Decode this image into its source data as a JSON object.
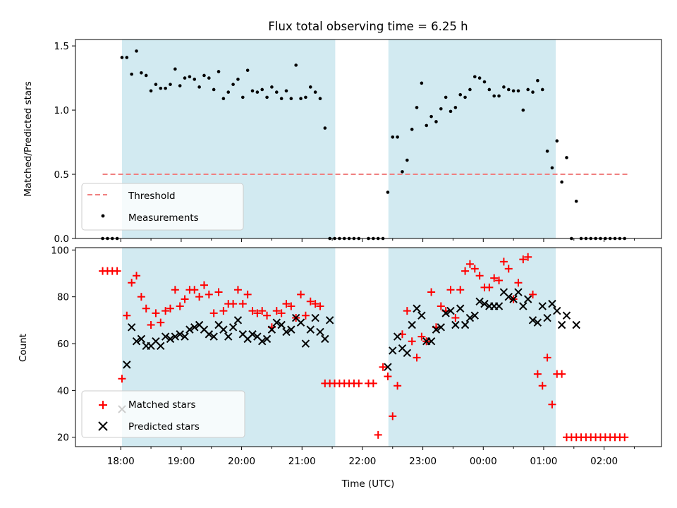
{
  "chart_data": [
    {
      "type": "scatter",
      "title": "Flux total observing time = 6.25 h",
      "xlabel": "",
      "ylabel": "Matched/Predicted stars",
      "ylim": [
        0,
        1.55
      ],
      "yticks": [
        "0.0",
        "0.5",
        "1.0",
        "1.5"
      ],
      "ytick_values": [
        0,
        0.5,
        1.0,
        1.5
      ],
      "xlim": [
        17.25,
        26.95
      ],
      "shaded_intervals": [
        [
          18.02,
          21.55
        ],
        [
          22.43,
          25.2
        ]
      ],
      "shade_color": "#add8e6",
      "threshold": {
        "name": "Threshold",
        "value": 0.5,
        "x_range": [
          17.7,
          26.4
        ],
        "color": "#f08080",
        "style": "dashed"
      },
      "series": [
        {
          "name": "Measurements",
          "color": "#000000",
          "marker": "dot",
          "x": [
            17.7,
            17.78,
            17.86,
            17.94,
            18.02,
            18.1,
            18.18,
            18.26,
            18.34,
            18.42,
            18.5,
            18.58,
            18.66,
            18.74,
            18.82,
            18.9,
            18.98,
            19.06,
            19.14,
            19.22,
            19.3,
            19.38,
            19.46,
            19.54,
            19.62,
            19.7,
            19.78,
            19.86,
            19.94,
            20.02,
            20.1,
            20.18,
            20.26,
            20.34,
            20.42,
            20.5,
            20.58,
            20.66,
            20.74,
            20.82,
            20.9,
            20.98,
            21.06,
            21.14,
            21.22,
            21.3,
            21.38,
            21.46,
            21.54,
            21.62,
            21.7,
            21.78,
            21.86,
            21.94,
            22.1,
            22.18,
            22.26,
            22.34,
            22.42,
            22.5,
            22.58,
            22.66,
            22.74,
            22.82,
            22.9,
            22.98,
            23.06,
            23.14,
            23.22,
            23.3,
            23.38,
            23.46,
            23.54,
            23.62,
            23.7,
            23.78,
            23.86,
            23.94,
            24.02,
            24.1,
            24.18,
            24.26,
            24.34,
            24.42,
            24.5,
            24.58,
            24.66,
            24.74,
            24.82,
            24.9,
            24.98,
            25.06,
            25.14,
            25.22,
            25.3,
            25.38,
            25.46,
            25.54,
            25.62,
            25.7,
            25.78,
            25.86,
            25.94,
            26.02,
            26.1,
            26.18,
            26.26,
            26.34
          ],
          "y": [
            0,
            0,
            0,
            0,
            1.41,
            1.41,
            1.28,
            1.46,
            1.29,
            1.27,
            1.15,
            1.2,
            1.17,
            1.17,
            1.2,
            1.32,
            1.19,
            1.25,
            1.26,
            1.24,
            1.18,
            1.27,
            1.25,
            1.16,
            1.3,
            1.09,
            1.14,
            1.2,
            1.24,
            1.1,
            1.31,
            1.15,
            1.14,
            1.16,
            1.1,
            1.18,
            1.14,
            1.09,
            1.15,
            1.09,
            1.35,
            1.09,
            1.1,
            1.18,
            1.14,
            1.09,
            0.86,
            0,
            0,
            0,
            0,
            0,
            0,
            0,
            0,
            0,
            0,
            0,
            0.36,
            0.79,
            0.79,
            0.52,
            0.61,
            0.85,
            1.02,
            1.21,
            0.88,
            0.95,
            0.91,
            1.01,
            1.1,
            0.99,
            1.02,
            1.12,
            1.1,
            1.16,
            1.26,
            1.25,
            1.22,
            1.16,
            1.11,
            1.11,
            1.18,
            1.16,
            1.15,
            1.15,
            1.0,
            1.16,
            1.14,
            1.23,
            1.16,
            0.68,
            0.55,
            0.76,
            0.44,
            0.63,
            0,
            0.29,
            0,
            0,
            0,
            0,
            0,
            0,
            0,
            0,
            0,
            0
          ]
        }
      ]
    },
    {
      "type": "scatter",
      "title": "",
      "xlabel": "Time (UTC)",
      "ylabel": "Count",
      "ylim": [
        16,
        101
      ],
      "yticks": [
        "20",
        "40",
        "60",
        "80",
        "100"
      ],
      "ytick_values": [
        20,
        40,
        60,
        80,
        100
      ],
      "xlim": [
        17.25,
        26.95
      ],
      "xticks": [
        "18:00",
        "19:00",
        "20:00",
        "21:00",
        "22:00",
        "23:00",
        "00:00",
        "01:00",
        "02:00"
      ],
      "xtick_values": [
        18,
        19,
        20,
        21,
        22,
        23,
        24,
        25,
        26
      ],
      "minor_xtick_values": [
        18.5,
        19.5,
        20.5,
        21.5,
        22.5,
        23.5,
        24.5,
        25.5,
        26.5
      ],
      "shaded_intervals": [
        [
          18.02,
          21.55
        ],
        [
          22.43,
          25.2
        ]
      ],
      "shade_color": "#add8e6",
      "series": [
        {
          "name": "Matched stars",
          "color": "#ff0000",
          "marker": "plus",
          "x": [
            17.7,
            17.78,
            17.86,
            17.94,
            18.02,
            18.1,
            18.18,
            18.26,
            18.34,
            18.42,
            18.5,
            18.58,
            18.66,
            18.74,
            18.82,
            18.9,
            18.98,
            19.06,
            19.14,
            19.22,
            19.3,
            19.38,
            19.46,
            19.54,
            19.62,
            19.7,
            19.78,
            19.86,
            19.94,
            20.02,
            20.1,
            20.18,
            20.26,
            20.34,
            20.42,
            20.5,
            20.58,
            20.66,
            20.74,
            20.82,
            20.9,
            20.98,
            21.06,
            21.14,
            21.22,
            21.3,
            21.38,
            21.46,
            21.54,
            21.62,
            21.7,
            21.78,
            21.86,
            21.94,
            22.1,
            22.18,
            22.26,
            22.34,
            22.42,
            22.5,
            22.58,
            22.66,
            22.74,
            22.82,
            22.9,
            22.98,
            23.06,
            23.14,
            23.22,
            23.3,
            23.38,
            23.46,
            23.54,
            23.62,
            23.7,
            23.78,
            23.86,
            23.94,
            24.02,
            24.1,
            24.18,
            24.26,
            24.34,
            24.42,
            24.5,
            24.58,
            24.66,
            24.74,
            24.82,
            24.9,
            24.98,
            25.06,
            25.14,
            25.22,
            25.3,
            25.38,
            25.46,
            25.54,
            25.62,
            25.7,
            25.78,
            25.86,
            25.94,
            26.02,
            26.1,
            26.18,
            26.26,
            26.34
          ],
          "y": [
            91,
            91,
            91,
            91,
            45,
            72,
            86,
            89,
            80,
            75,
            68,
            73,
            69,
            74,
            75,
            83,
            76,
            79,
            83,
            83,
            80,
            85,
            81,
            73,
            82,
            74,
            77,
            77,
            83,
            77,
            81,
            74,
            73,
            74,
            72,
            67,
            74,
            73,
            77,
            76,
            71,
            81,
            72,
            78,
            77,
            76,
            43,
            43,
            43,
            43,
            43,
            43,
            43,
            43,
            43,
            43,
            21,
            50,
            46,
            29,
            42,
            64,
            74,
            61,
            54,
            63,
            61,
            82,
            67,
            76,
            74,
            83,
            71,
            83,
            91,
            94,
            92,
            89,
            84,
            84,
            88,
            87,
            95,
            92,
            79,
            86,
            96,
            97,
            81,
            47,
            42,
            54,
            34,
            47,
            47,
            20,
            20,
            20,
            20,
            20,
            20,
            20,
            20,
            20,
            20,
            20,
            20,
            20
          ]
        },
        {
          "name": "Predicted stars",
          "color": "#000000",
          "marker": "x",
          "x": [
            18.02,
            18.1,
            18.18,
            18.26,
            18.34,
            18.42,
            18.5,
            18.58,
            18.66,
            18.74,
            18.82,
            18.9,
            18.98,
            19.06,
            19.14,
            19.22,
            19.3,
            19.38,
            19.46,
            19.54,
            19.62,
            19.7,
            19.78,
            19.86,
            19.94,
            20.02,
            20.1,
            20.18,
            20.26,
            20.34,
            20.42,
            20.5,
            20.58,
            20.66,
            20.74,
            20.82,
            20.9,
            20.98,
            21.06,
            21.14,
            21.22,
            21.3,
            21.38,
            21.46,
            22.42,
            22.5,
            22.58,
            22.66,
            22.74,
            22.82,
            22.9,
            22.98,
            23.06,
            23.14,
            23.22,
            23.3,
            23.38,
            23.46,
            23.54,
            23.62,
            23.7,
            23.78,
            23.86,
            23.94,
            24.02,
            24.1,
            24.18,
            24.26,
            24.34,
            24.42,
            24.5,
            24.58,
            24.66,
            24.74,
            24.82,
            24.9,
            24.98,
            25.06,
            25.14,
            25.22,
            25.3,
            25.38,
            25.54
          ],
          "y": [
            32,
            51,
            67,
            61,
            62,
            59,
            59,
            61,
            59,
            63,
            62,
            63,
            64,
            63,
            66,
            67,
            68,
            66,
            64,
            63,
            68,
            66,
            63,
            67,
            70,
            64,
            62,
            64,
            63,
            61,
            62,
            66,
            69,
            68,
            65,
            66,
            71,
            69,
            60,
            66,
            71,
            65,
            62,
            70,
            50,
            57,
            63,
            58,
            56,
            68,
            75,
            72,
            61,
            61,
            66,
            67,
            73,
            74,
            68,
            75,
            68,
            71,
            72,
            78,
            77,
            76,
            76,
            76,
            82,
            80,
            79,
            82,
            76,
            79,
            70,
            69,
            76,
            71,
            77,
            74,
            68,
            72,
            68
          ]
        }
      ]
    }
  ]
}
